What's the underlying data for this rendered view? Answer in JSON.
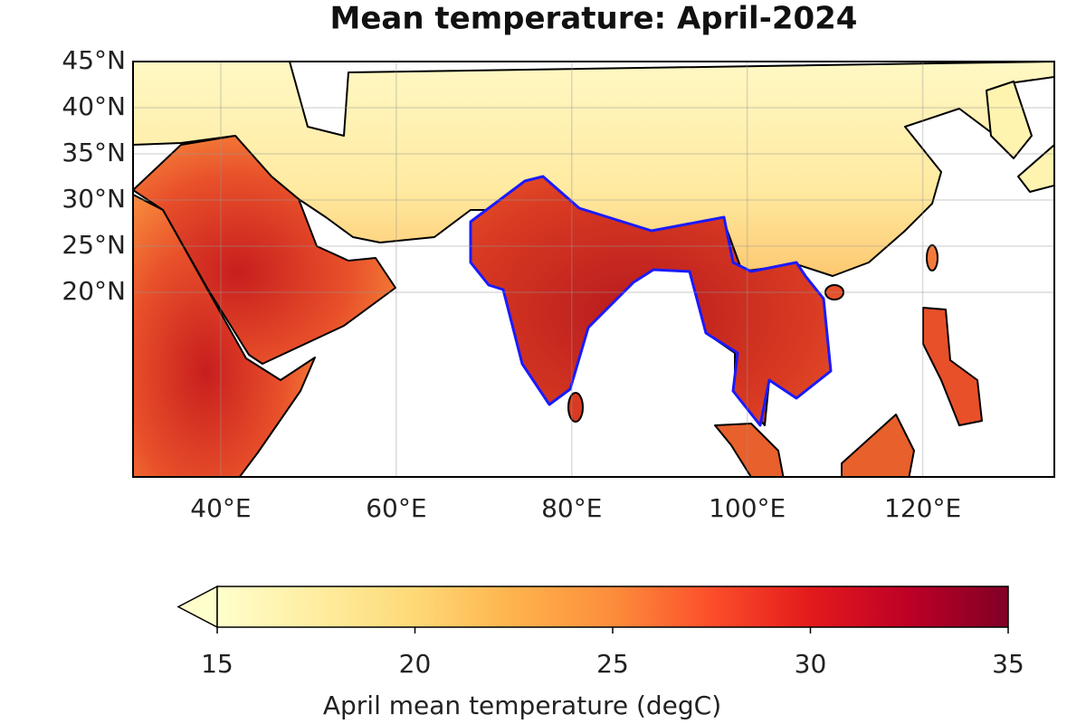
{
  "chart_data": {
    "type": "map",
    "title": "Mean temperature: April-2024",
    "xlim": [
      30,
      135
    ],
    "ylim": [
      0,
      45
    ],
    "xticks": [
      {
        "value": 40,
        "label": "40°E"
      },
      {
        "value": 60,
        "label": "60°E"
      },
      {
        "value": 80,
        "label": "80°E"
      },
      {
        "value": 100,
        "label": "100°E"
      },
      {
        "value": 120,
        "label": "120°E"
      }
    ],
    "yticks": [
      {
        "value": 20,
        "label": "20°N"
      },
      {
        "value": 25,
        "label": "25°N"
      },
      {
        "value": 30,
        "label": "30°N"
      },
      {
        "value": 35,
        "label": "35°N"
      },
      {
        "value": 40,
        "label": "40°N"
      },
      {
        "value": 45,
        "label": "45°N"
      }
    ],
    "grid": true,
    "colorbar": {
      "label": "April mean temperature (degC)",
      "lim": [
        15,
        35
      ],
      "ticks": [
        15,
        20,
        25,
        30,
        35
      ],
      "extend": "min",
      "colormap": [
        "#ffffcc",
        "#ffeda0",
        "#fed976",
        "#feb24c",
        "#fd8d3c",
        "#fc4e2a",
        "#e31a1c",
        "#bd0026",
        "#800026"
      ]
    }
  }
}
